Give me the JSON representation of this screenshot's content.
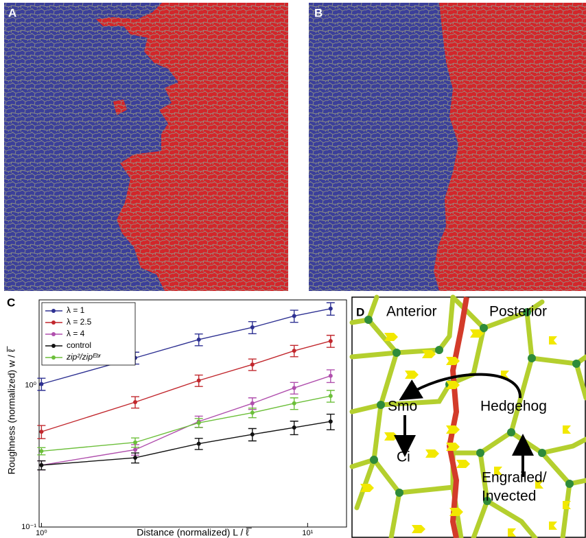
{
  "panels": [
    "A",
    "B",
    "C",
    "D"
  ],
  "diagram": {
    "anterior": "Anterior",
    "posterior": "Posterior",
    "smo": "Smo",
    "ci": "Ci",
    "hedgehog": "Hedgehog",
    "engrailed_1": "Engrailed/",
    "engrailed_2": "Invected"
  },
  "chart_data": {
    "type": "line",
    "xlabel": "Distance (normalized) L / ℓ̅",
    "ylabel": "Roughness (normalized) w / ℓ̅",
    "xscale": "log",
    "yscale": "log",
    "xlim": [
      0.98,
      14
    ],
    "ylim": [
      0.1,
      4
    ],
    "xticks": [
      {
        "value": 1,
        "label": "10⁰"
      },
      {
        "value": 10,
        "label": "10¹"
      }
    ],
    "yticks": [
      {
        "value": 0.1,
        "label": "10⁻¹"
      },
      {
        "value": 1,
        "label": "10⁰"
      }
    ],
    "legend": "upper left",
    "x": [
      1,
      2.25,
      3.9,
      6.2,
      8.9,
      12.2
    ],
    "series": [
      {
        "name": "λ = 1",
        "color": "#2e3192",
        "values": [
          1.02,
          1.56,
          2.1,
          2.56,
          3.08,
          3.47
        ],
        "errors": [
          0.1,
          0.15,
          0.2,
          0.25,
          0.3,
          0.35
        ]
      },
      {
        "name": "λ = 2.5",
        "color": "#c1272d",
        "values": [
          0.47,
          0.76,
          1.08,
          1.4,
          1.75,
          2.05
        ],
        "errors": [
          0.05,
          0.07,
          0.1,
          0.13,
          0.16,
          0.2
        ]
      },
      {
        "name": "λ = 4",
        "color": "#b04fad",
        "values": [
          0.273,
          0.351,
          0.555,
          0.745,
          0.957,
          1.165
        ],
        "errors": [
          0.02,
          0.03,
          0.05,
          0.07,
          0.09,
          0.12
        ]
      },
      {
        "name": "control",
        "color": "#111111",
        "values": [
          0.273,
          0.308,
          0.387,
          0.45,
          0.503,
          0.555
        ],
        "errors": [
          0.02,
          0.025,
          0.035,
          0.045,
          0.055,
          0.07
        ]
      },
      {
        "name": "zip²/zipᴱᵇʳ",
        "color": "#6cbf3a",
        "values": [
          0.343,
          0.395,
          0.543,
          0.64,
          0.745,
          0.84
        ],
        "errors": [
          0.02,
          0.03,
          0.04,
          0.05,
          0.07,
          0.08
        ]
      }
    ]
  }
}
